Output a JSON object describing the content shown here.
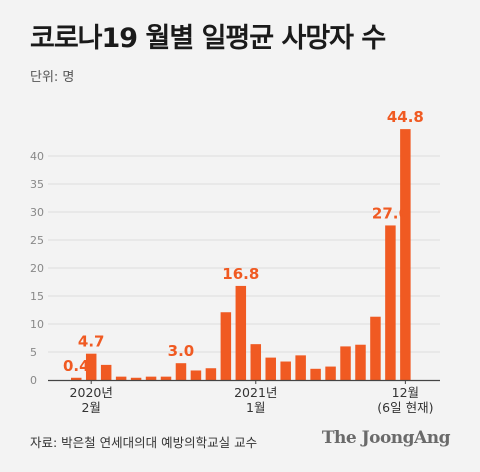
{
  "title": "코로나19 월별 일평균 사망자 수",
  "unit_label": "단위: 명",
  "source": "자료: 박은철 연세대의대 예방의학교실 교수",
  "logo_text": "The JoongAng",
  "colors": {
    "bar": "#f05a22",
    "value_label": "#f05a22",
    "gridline": "#d6d6d6",
    "axis": "#444444",
    "tick_text": "#888888"
  },
  "chart_data": {
    "type": "bar",
    "values": [
      0.4,
      4.7,
      2.7,
      0.6,
      0.4,
      0.6,
      0.6,
      3.0,
      1.7,
      2.1,
      12.1,
      16.8,
      6.4,
      4.0,
      3.3,
      4.4,
      2.0,
      2.4,
      6.0,
      6.3,
      11.3,
      27.6,
      44.8
    ],
    "value_labels": [
      "0.4",
      "4.7",
      "",
      "",
      "",
      "",
      "",
      "3.0",
      "",
      "",
      "",
      "16.8",
      "",
      "",
      "",
      "",
      "",
      "",
      "",
      "",
      "",
      "27.6",
      "44.8"
    ],
    "x_labels": [
      {
        "index": 1,
        "lines": [
          "2020년",
          "2월"
        ]
      },
      {
        "index": 12,
        "lines": [
          "2021년",
          "1월"
        ]
      },
      {
        "index": 22,
        "lines": [
          "12월",
          "(6일 현재)"
        ]
      }
    ],
    "y_ticks": [
      0,
      5,
      10,
      15,
      20,
      25,
      30,
      35,
      40
    ],
    "ylim": [
      0,
      47
    ],
    "grid": true
  }
}
